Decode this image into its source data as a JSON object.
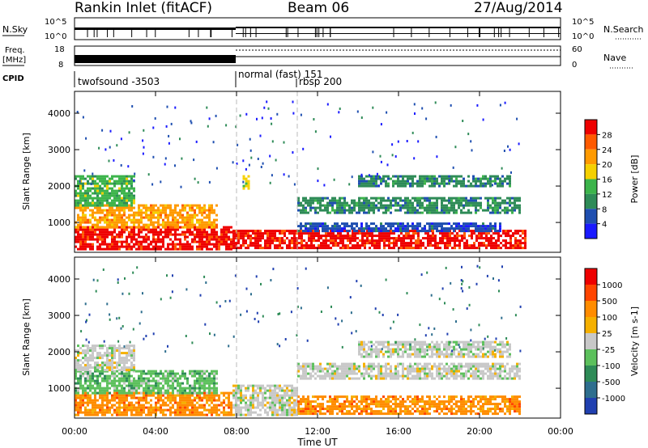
{
  "header": {
    "station": "Rankin Inlet (fitACF)",
    "beam": "Beam 06",
    "date": "27/Aug/2014"
  },
  "panels": {
    "nsky": {
      "left_label": "N.Sky",
      "right_label": "N.Search",
      "left_ticks": [
        "10^5",
        "10^0"
      ],
      "right_ticks": [
        "10^5",
        "10^0"
      ]
    },
    "freq": {
      "left_label_1": "Freq.",
      "left_label_2": "[MHz]",
      "right_label": "Nave",
      "left_ticks": [
        "18",
        "8"
      ],
      "right_ticks": [
        "60",
        "0"
      ]
    },
    "cpid": {
      "label": "CPID",
      "modes": [
        "twofsound -3503",
        "normal (fast) 151",
        "rbsp 200"
      ]
    }
  },
  "chart_data": [
    {
      "type": "heatmap",
      "name": "power",
      "xlabel": "",
      "ylabel": "Slant Range [km]",
      "x_ticks": [
        "00:00",
        "04:00",
        "08:00",
        "12:00",
        "16:00",
        "20:00",
        "00:00"
      ],
      "xlim_hours": [
        0,
        24
      ],
      "y_ticks": [
        1000,
        2000,
        3000,
        4000
      ],
      "ylim": [
        180,
        4600
      ],
      "colorbar": {
        "label": "Power [dB]",
        "ticks": [
          "4",
          "8",
          "12",
          "16",
          "20",
          "24",
          "28"
        ],
        "colors": [
          "#1a1aff",
          "#1f4fb0",
          "#2e8b57",
          "#3cb44b",
          "#f5d000",
          "#ff9a00",
          "#ff5a00",
          "#ee0000"
        ]
      },
      "backscatter_regions": [
        {
          "t0": 0.0,
          "t1": 7.8,
          "r0": 300,
          "r1": 900,
          "level": "28"
        },
        {
          "t0": 0.0,
          "t1": 7.0,
          "r0": 900,
          "r1": 1500,
          "level": "20"
        },
        {
          "t0": 0.0,
          "t1": 3.0,
          "r0": 1500,
          "r1": 2300,
          "level": "12"
        },
        {
          "t0": 7.8,
          "t1": 22.3,
          "r0": 300,
          "r1": 800,
          "level": "28"
        },
        {
          "t0": 11.0,
          "t1": 21.0,
          "r0": 800,
          "r1": 1000,
          "level": "4"
        },
        {
          "t0": 11.0,
          "t1": 22.0,
          "r0": 1300,
          "r1": 1700,
          "level": "8"
        },
        {
          "t0": 14.0,
          "t1": 21.5,
          "r0": 2000,
          "r1": 2300,
          "level": "8"
        },
        {
          "t0": 8.3,
          "t1": 8.6,
          "r0": 1950,
          "r1": 2300,
          "level": "16"
        }
      ]
    },
    {
      "type": "heatmap",
      "name": "velocity",
      "xlabel": "Time UT",
      "ylabel": "Slant Range [km]",
      "x_ticks": [
        "00:00",
        "04:00",
        "08:00",
        "12:00",
        "16:00",
        "20:00",
        "00:00"
      ],
      "xlim_hours": [
        0,
        24
      ],
      "y_ticks": [
        1000,
        2000,
        3000,
        4000
      ],
      "ylim": [
        180,
        4600
      ],
      "colorbar": {
        "label": "Velocity [m s-1]",
        "ticks": [
          "1000",
          "500",
          "100",
          "25",
          "-25",
          "-100",
          "-500",
          "-1000"
        ],
        "colors": [
          "#2040b0",
          "#2e6e8e",
          "#2e8b57",
          "#5cc05c",
          "#c8c8c8",
          "#f5b000",
          "#ff8c00",
          "#ff4500",
          "#ee0000"
        ]
      },
      "backscatter_regions": [
        {
          "t0": 0.0,
          "t1": 7.8,
          "r0": 300,
          "r1": 900,
          "level": "-100"
        },
        {
          "t0": 0.0,
          "t1": 7.0,
          "r0": 900,
          "r1": 1500,
          "level": "100"
        },
        {
          "t0": 0.0,
          "t1": 3.0,
          "r0": 1500,
          "r1": 2200,
          "level": "25"
        },
        {
          "t0": 7.8,
          "t1": 11.0,
          "r0": 300,
          "r1": 1100,
          "level": "25"
        },
        {
          "t0": 11.0,
          "t1": 22.0,
          "r0": 300,
          "r1": 800,
          "level": "-100"
        },
        {
          "t0": 11.0,
          "t1": 22.0,
          "r0": 1300,
          "r1": 1700,
          "level": "25"
        },
        {
          "t0": 14.0,
          "t1": 21.5,
          "r0": 1900,
          "r1": 2300,
          "level": "25"
        }
      ]
    }
  ],
  "x_axis_title": "Time UT"
}
